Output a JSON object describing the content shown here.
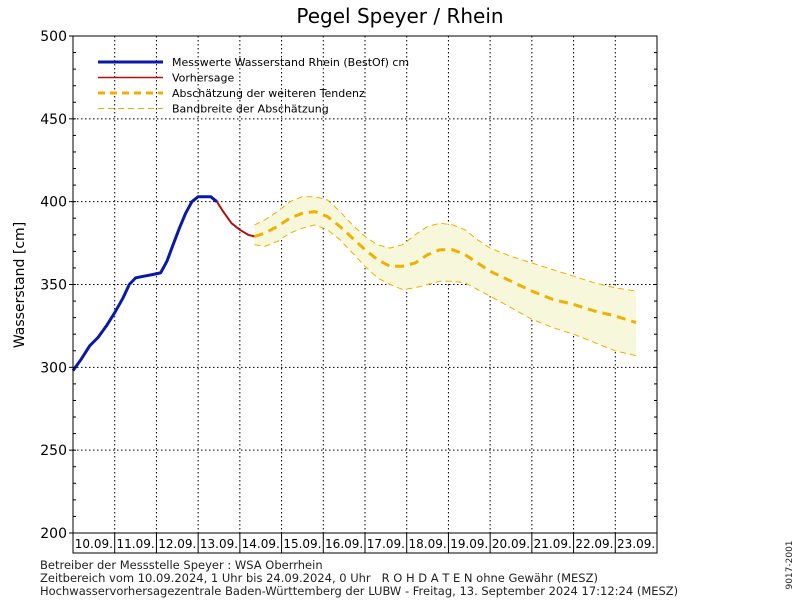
{
  "chart_data": {
    "type": "line",
    "title": "Pegel Speyer / Rhein",
    "ylabel": "Wasserstand [cm]",
    "xlabel": "",
    "ylim": [
      200,
      500
    ],
    "yticks": [
      200,
      250,
      300,
      350,
      400,
      450,
      500
    ],
    "x_unit": "day of September 2024",
    "xlim": [
      10,
      24
    ],
    "x_tick_labels": [
      "10.09.",
      "11.09.",
      "12.09.",
      "13.09.",
      "14.09.",
      "15.09.",
      "16.09.",
      "17.09.",
      "18.09.",
      "19.09.",
      "20.09.",
      "21.09.",
      "22.09.",
      "23.09."
    ],
    "grid": true,
    "legend_position": "top-left",
    "series": [
      {
        "name": "Messwerte Wasserstand Rhein (BestOf)  cm",
        "color": "#0a1aa8",
        "style": "solid-thick",
        "x": [
          10.0,
          10.2,
          10.4,
          10.6,
          10.8,
          11.0,
          11.2,
          11.35,
          11.5,
          11.7,
          11.9,
          12.1,
          12.25,
          12.4,
          12.55,
          12.7,
          12.85,
          13.0,
          13.15,
          13.3,
          13.45
        ],
        "y": [
          298,
          305,
          313,
          318,
          325,
          333,
          342,
          350,
          354,
          355,
          356,
          357,
          364,
          374,
          384,
          393,
          400,
          403,
          403,
          403,
          400
        ]
      },
      {
        "name": "Vorhersage",
        "color": "#b01010",
        "style": "solid",
        "x": [
          13.45,
          13.6,
          13.8,
          14.0,
          14.2,
          14.35
        ],
        "y": [
          400,
          394,
          387,
          383,
          380,
          379
        ]
      },
      {
        "name": "Abschätzung der weiteren Tendenz",
        "color": "#f0b000",
        "style": "dashed-thick",
        "x": [
          14.35,
          14.6,
          14.9,
          15.2,
          15.5,
          15.8,
          16.1,
          16.4,
          16.7,
          17.0,
          17.3,
          17.6,
          17.9,
          18.2,
          18.5,
          18.8,
          19.1,
          19.4,
          19.7,
          20.0,
          20.5,
          21.0,
          21.5,
          22.0,
          22.5,
          23.0,
          23.5
        ],
        "y": [
          379,
          381,
          385,
          390,
          393,
          394,
          391,
          385,
          378,
          371,
          365,
          361,
          361,
          363,
          368,
          371,
          371,
          368,
          363,
          358,
          352,
          346,
          341,
          338,
          334,
          331,
          327
        ]
      },
      {
        "name": "Bandbreite der Abschätzung",
        "color": "#f0b000",
        "style": "dashed-thin",
        "x": [
          14.35,
          14.6,
          14.9,
          15.2,
          15.5,
          15.8,
          16.1,
          16.4,
          16.7,
          17.0,
          17.3,
          17.6,
          17.9,
          18.2,
          18.5,
          18.8,
          19.1,
          19.4,
          19.7,
          20.0,
          20.5,
          21.0,
          21.5,
          22.0,
          22.5,
          23.0,
          23.5
        ],
        "upper": [
          386,
          389,
          394,
          400,
          403,
          403,
          401,
          394,
          386,
          379,
          374,
          372,
          374,
          380,
          385,
          387,
          386,
          383,
          377,
          372,
          367,
          363,
          359,
          355,
          351,
          348,
          346
        ],
        "lower": [
          374,
          373,
          376,
          381,
          384,
          386,
          383,
          377,
          369,
          361,
          354,
          350,
          347,
          348,
          350,
          352,
          352,
          351,
          347,
          343,
          336,
          329,
          324,
          320,
          315,
          310,
          307
        ]
      }
    ]
  },
  "footer": {
    "line1": "Betreiber der Messstelle Speyer : WSA Oberrhein",
    "line2": "Zeitbereich vom 10.09.2024, 1 Uhr bis 24.09.2024, 0 Uhr   R O H D A T E N ohne Gewähr (MESZ)",
    "line3": "Hochwasservorhersagezentrale Baden-Württemberg der LUBW - Freitag, 13. September 2024 17:12:24 (MESZ)"
  },
  "side_code": "9017-2001"
}
